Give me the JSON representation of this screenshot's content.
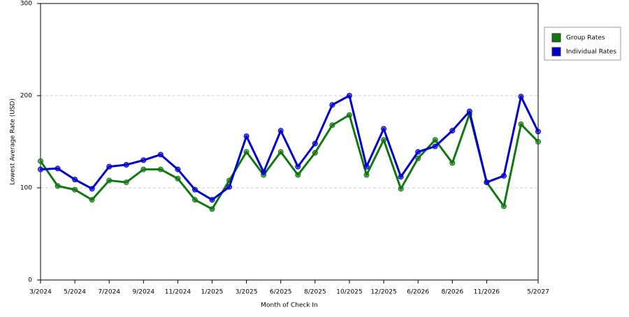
{
  "chart_data": {
    "type": "line",
    "x_label": "Month of Check In",
    "y_label": "Lowest Average Rate (USD)",
    "categories": [
      "3/2024",
      null,
      "5/2024",
      null,
      "7/2024",
      null,
      "9/2024",
      null,
      "11/2024",
      null,
      "1/2025",
      null,
      "3/2025",
      null,
      "6/2025",
      null,
      "8/2025",
      null,
      "10/2025",
      null,
      "12/2025",
      null,
      "6/2026",
      null,
      "8/2026",
      null,
      "11/2026",
      null,
      null,
      "5/2027"
    ],
    "series": [
      {
        "name": "Group Rates",
        "color": "#117711",
        "values": [
          129,
          102,
          98,
          87,
          108,
          106,
          120,
          120,
          110,
          87,
          77,
          108,
          139,
          114,
          139,
          114,
          138,
          168,
          179,
          114,
          152,
          99,
          132,
          152,
          127,
          180,
          106,
          80,
          169,
          150
        ]
      },
      {
        "name": "Individual Rates",
        "color": "#0000cc",
        "values": [
          120,
          121,
          109,
          99,
          123,
          125,
          130,
          136,
          120,
          98,
          87,
          101,
          156,
          117,
          162,
          123,
          148,
          190,
          200,
          123,
          164,
          112,
          139,
          145,
          162,
          183,
          106,
          113,
          199,
          161
        ]
      }
    ],
    "ylim": [
      0,
      300
    ],
    "yticks": [
      0,
      100,
      200,
      300
    ],
    "grid": true,
    "legend": "right"
  }
}
